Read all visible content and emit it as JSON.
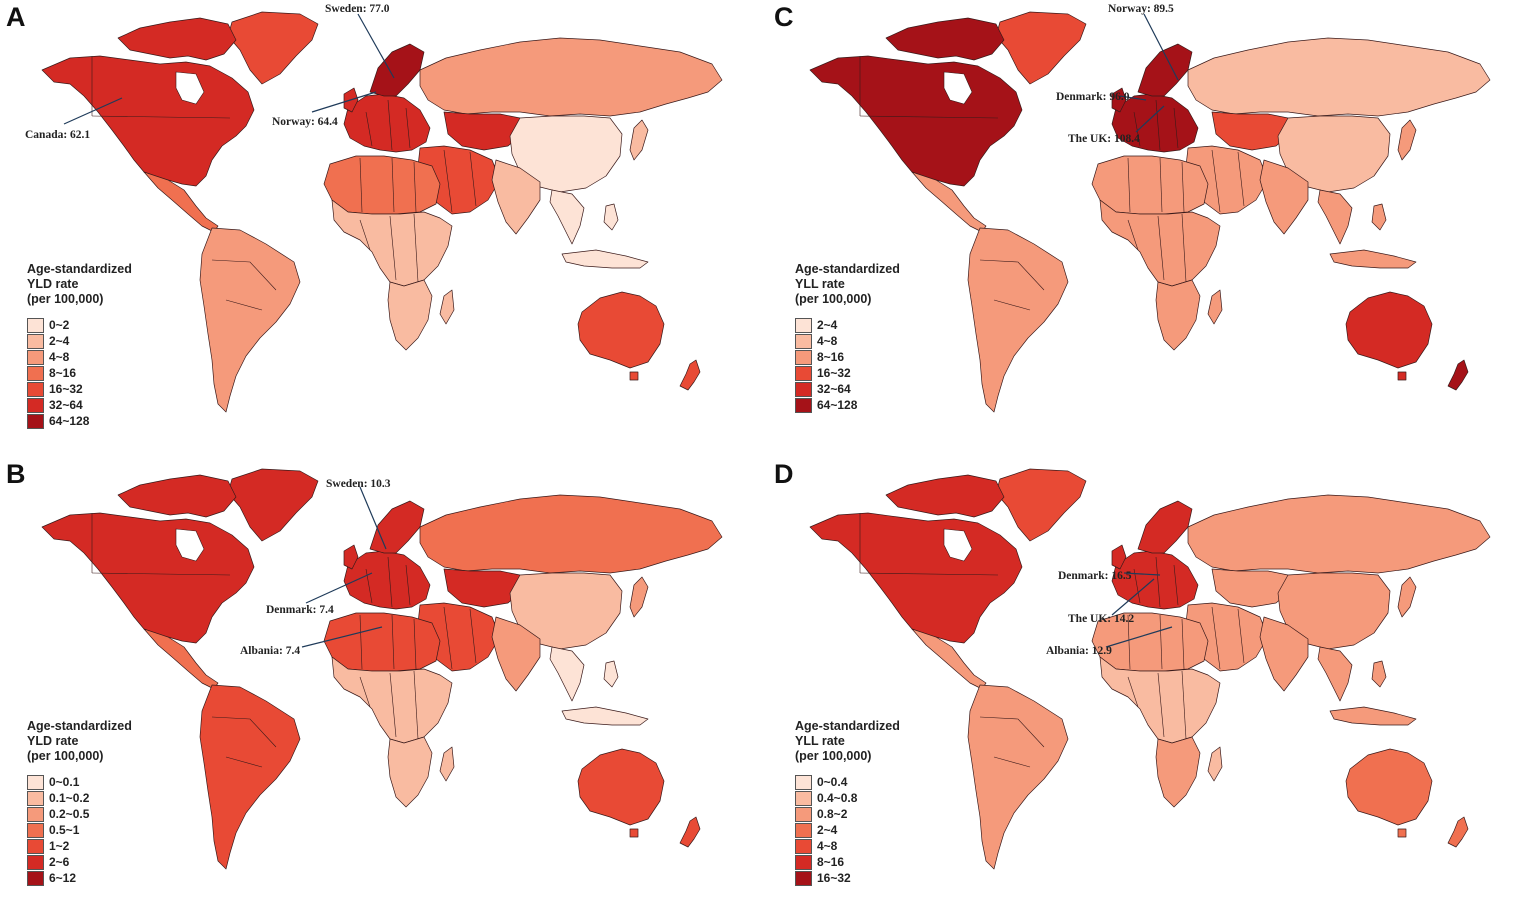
{
  "panels": [
    {
      "id": "a",
      "letter": "A",
      "legend": {
        "title_lines": [
          "Age-standardized",
          "YLD rate",
          "(per 100,000)"
        ],
        "bins": [
          "0~2",
          "2~4",
          "4~8",
          "8~16",
          "16~32",
          "32~64",
          "64~128"
        ],
        "colors": [
          "#fde3d6",
          "#f9bba1",
          "#f59a7b",
          "#f07050",
          "#e84a35",
          "#d42a24",
          "#a51218"
        ]
      },
      "regions": {
        "north_america": 5,
        "greenland": 4,
        "central_america": 3,
        "south_america": 2,
        "europe": 5,
        "scandinavia": 6,
        "russia": 2,
        "central_asia": 5,
        "china": 0,
        "south_asia": 1,
        "middle_east": 4,
        "north_africa": 3,
        "subsaharan_africa": 1,
        "southern_africa": 1,
        "southeast_asia": 0,
        "japan": 1,
        "australia": 4,
        "new_zealand": 4
      },
      "callouts": [
        {
          "text": "Sweden: 77.0"
        },
        {
          "text": "Norway: 64.4"
        },
        {
          "text": "Canada: 62.1"
        }
      ]
    },
    {
      "id": "c",
      "letter": "C",
      "legend": {
        "title_lines": [
          "Age-standardized",
          "YLL rate",
          "(per 100,000)"
        ],
        "bins": [
          "2~4",
          "4~8",
          "8~16",
          "16~32",
          "32~64",
          "64~128"
        ],
        "colors": [
          "#fde3d6",
          "#f9bba1",
          "#f59a7b",
          "#e84a35",
          "#d42a24",
          "#a51218"
        ]
      },
      "regions": {
        "north_america": 5,
        "greenland": 3,
        "central_america": 2,
        "south_america": 2,
        "europe": 5,
        "scandinavia": 5,
        "russia": 1,
        "central_asia": 3,
        "china": 1,
        "south_asia": 2,
        "middle_east": 2,
        "north_africa": 2,
        "subsaharan_africa": 2,
        "southern_africa": 2,
        "southeast_asia": 2,
        "japan": 2,
        "australia": 4,
        "new_zealand": 5
      },
      "callouts": [
        {
          "text": "Norway: 89.5"
        },
        {
          "text": "Denmark: 96.0"
        },
        {
          "text": "The UK: 108.4"
        }
      ]
    },
    {
      "id": "b",
      "letter": "B",
      "legend": {
        "title_lines": [
          "Age-standardized",
          "YLD rate",
          "(per 100,000)"
        ],
        "bins": [
          "0~0.1",
          "0.1~0.2",
          "0.2~0.5",
          "0.5~1",
          "1~2",
          "2~6",
          "6~12"
        ],
        "colors": [
          "#fde3d6",
          "#f9bba1",
          "#f59a7b",
          "#f07050",
          "#e84a35",
          "#d42a24",
          "#a51218"
        ]
      },
      "regions": {
        "north_america": 5,
        "greenland": 5,
        "central_america": 3,
        "south_america": 4,
        "europe": 5,
        "scandinavia": 5,
        "russia": 3,
        "central_asia": 5,
        "china": 1,
        "south_asia": 2,
        "middle_east": 4,
        "north_africa": 4,
        "subsaharan_africa": 1,
        "southern_africa": 1,
        "southeast_asia": 0,
        "japan": 2,
        "australia": 4,
        "new_zealand": 4
      },
      "callouts": [
        {
          "text": "Sweden: 10.3"
        },
        {
          "text": "Denmark: 7.4"
        },
        {
          "text": "Albania: 7.4"
        }
      ]
    },
    {
      "id": "d",
      "letter": "D",
      "legend": {
        "title_lines": [
          "Age-standardized",
          "YLL rate",
          "(per 100,000)"
        ],
        "bins": [
          "0~0.4",
          "0.4~0.8",
          "0.8~2",
          "2~4",
          "4~8",
          "8~16",
          "16~32"
        ],
        "colors": [
          "#fde3d6",
          "#f9bba1",
          "#f59a7b",
          "#f07050",
          "#e84a35",
          "#d42a24",
          "#a51218"
        ]
      },
      "regions": {
        "north_america": 5,
        "greenland": 4,
        "central_america": 2,
        "south_america": 2,
        "europe": 5,
        "scandinavia": 5,
        "russia": 2,
        "central_asia": 2,
        "china": 2,
        "south_asia": 2,
        "middle_east": 2,
        "north_africa": 2,
        "subsaharan_africa": 1,
        "southern_africa": 2,
        "southeast_asia": 2,
        "japan": 2,
        "australia": 3,
        "new_zealand": 3
      },
      "callouts": [
        {
          "text": "Denmark: 16.5"
        },
        {
          "text": "The UK: 14.2"
        },
        {
          "text": "Albania: 12.9"
        }
      ]
    }
  ]
}
